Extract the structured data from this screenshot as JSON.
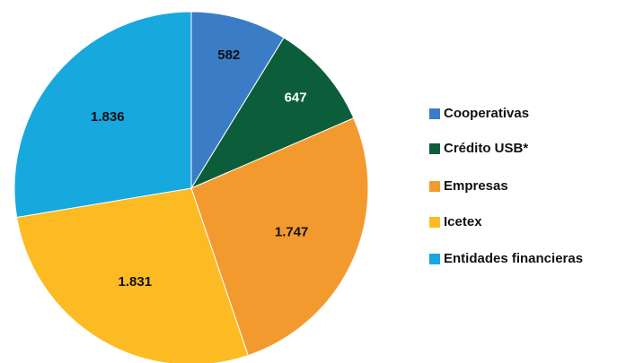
{
  "chart_data": {
    "type": "pie",
    "categories": [
      "Cooperativas",
      "Crédito USB*",
      "Empresas",
      "Icetex",
      "Entidades financieras"
    ],
    "values": [
      582,
      647,
      1747,
      1831,
      1836
    ],
    "value_labels": [
      "582",
      "647",
      "1.747",
      "1.831",
      "1.836"
    ],
    "colors": [
      "#3a7dc6",
      "#0c5e3b",
      "#f39a2f",
      "#fcbb23",
      "#17a8de"
    ],
    "label_colors": [
      "#111111",
      "#ffffff",
      "#111111",
      "#111111",
      "#111111"
    ],
    "legend": "right"
  }
}
